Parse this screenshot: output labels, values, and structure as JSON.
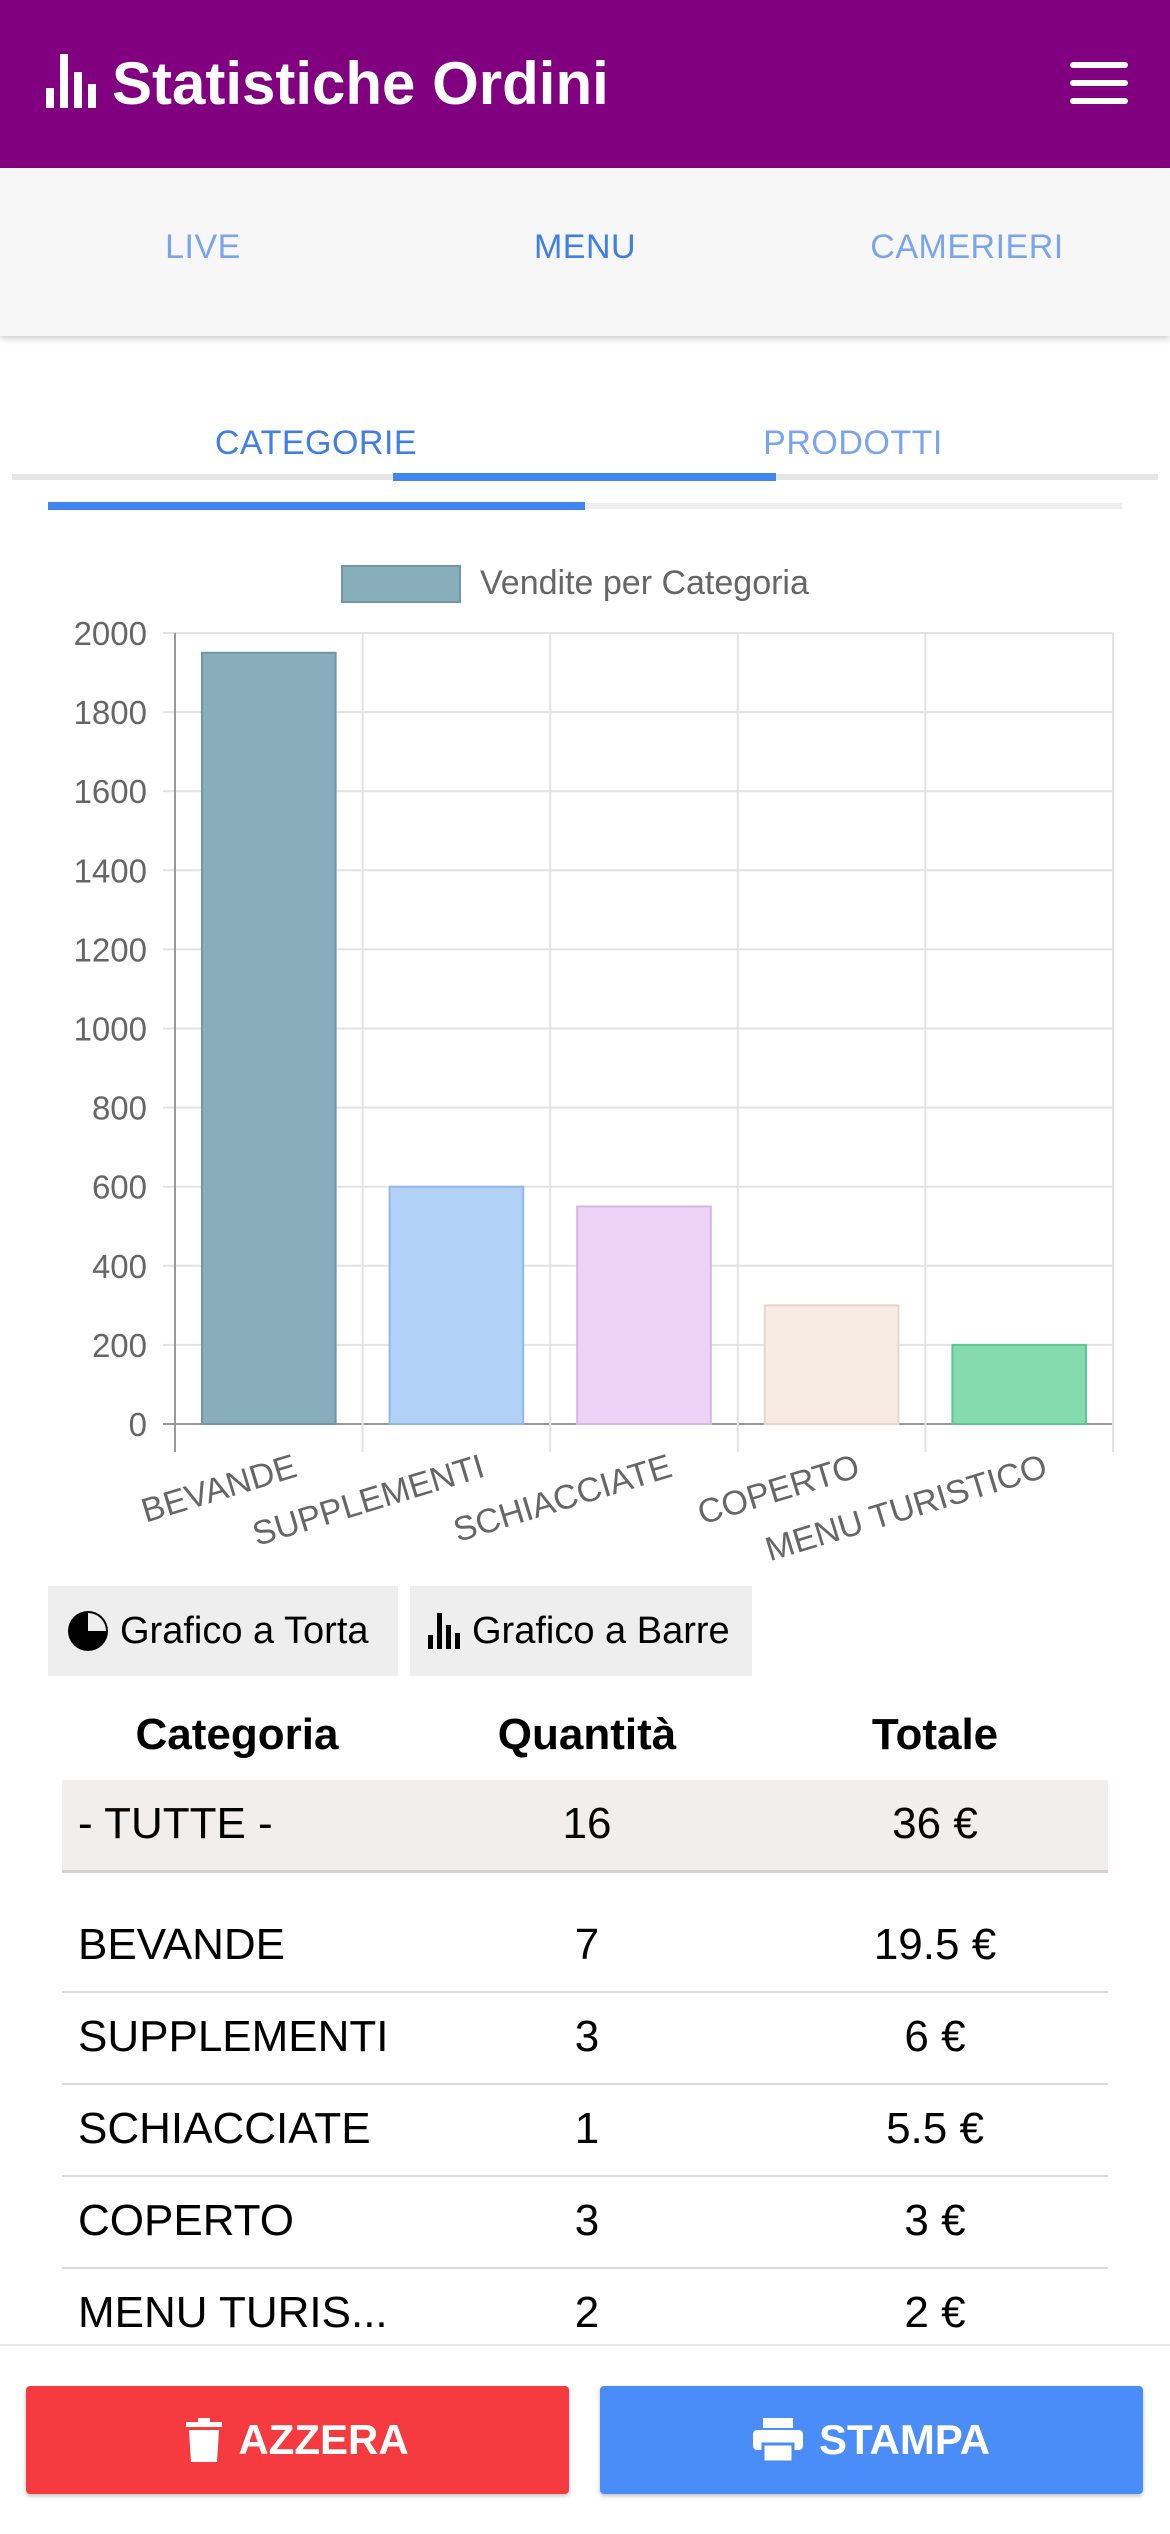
{
  "header": {
    "title": "Statistiche Ordini",
    "title_icon": "bar-chart-icon",
    "menu_icon": "hamburger-menu-icon",
    "background": "#800080"
  },
  "top_tabs": [
    {
      "label": "LIVE",
      "active": false
    },
    {
      "label": "MENU",
      "active": true
    },
    {
      "label": "CAMERIERI",
      "active": false
    }
  ],
  "sub_tabs": [
    {
      "label": "CATEGORIE",
      "active": true
    },
    {
      "label": "PRODOTTI",
      "active": false
    }
  ],
  "chart_data": {
    "type": "bar",
    "categories": [
      "BEVANDE",
      "SUPPLEMENTI",
      "SCHIACCIATE",
      "COPERTO",
      "MENU TURISTICO"
    ],
    "series": [
      {
        "name": "Vendite per Categoria",
        "values": [
          1950,
          600,
          550,
          300,
          200
        ]
      }
    ],
    "bar_colors": [
      "#88aebb",
      "#b2d1f7",
      "#edd2f6",
      "#f8ebe4",
      "#86dbae"
    ],
    "bar_borders": [
      "#6f97a6",
      "#94b8e6",
      "#d6b6e2",
      "#e6d6cc",
      "#5fc592"
    ],
    "legend_color": "#88aebb",
    "ylim": [
      0,
      2000
    ],
    "yticks": [
      0,
      200,
      400,
      600,
      800,
      1000,
      1200,
      1400,
      1600,
      1800,
      2000
    ],
    "legend_position": "top",
    "grid": true
  },
  "chart_buttons": {
    "pie_label": "Grafico a Torta",
    "pie_icon": "pie-chart-icon",
    "bar_label": "Grafico a Barre",
    "bar_icon": "bar-chart-icon"
  },
  "table": {
    "headers": [
      "Categoria",
      "Quantità",
      "Totale"
    ],
    "total_row": [
      "- TUTTE -",
      "16",
      "36 €"
    ],
    "rows": [
      [
        "BEVANDE",
        "7",
        "19.5 €"
      ],
      [
        "SUPPLEMENTI",
        "3",
        "6 €"
      ],
      [
        "SCHIACCIATE",
        "1",
        "5.5 €"
      ],
      [
        "COPERTO",
        "3",
        "3 €"
      ],
      [
        "MENU TURIS...",
        "2",
        "2 €"
      ]
    ]
  },
  "footer": {
    "reset_label": "AZZERA",
    "reset_icon": "trash-icon",
    "reset_color": "#f53b3f",
    "print_label": "STAMPA",
    "print_icon": "printer-icon",
    "print_color": "#4a8cf8"
  }
}
